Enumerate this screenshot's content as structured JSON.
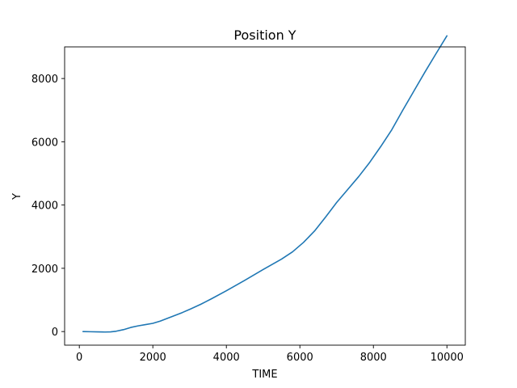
{
  "chart_data": {
    "type": "line",
    "title": "Position Y",
    "xlabel": "TIME",
    "ylabel": "Y",
    "xlim": [
      -400,
      10500
    ],
    "ylim": [
      -430,
      9000
    ],
    "xticks": [
      0,
      2000,
      4000,
      6000,
      8000,
      10000
    ],
    "yticks": [
      0,
      2000,
      4000,
      6000,
      8000
    ],
    "grid": false,
    "series": [
      {
        "color": "#1f77b4",
        "x": [
          100,
          300,
          500,
          700,
          850,
          1000,
          1200,
          1400,
          1600,
          1800,
          2000,
          2200,
          2400,
          2600,
          2800,
          3000,
          3300,
          3600,
          4000,
          4500,
          5000,
          5500,
          5800,
          6100,
          6400,
          6700,
          7000,
          7300,
          7600,
          7900,
          8200,
          8500,
          8800,
          9100,
          9400,
          9700,
          10000
        ],
        "y": [
          0,
          -5,
          -10,
          -15,
          -10,
          10,
          60,
          130,
          180,
          220,
          260,
          330,
          420,
          510,
          600,
          700,
          860,
          1040,
          1290,
          1620,
          1960,
          2290,
          2520,
          2820,
          3180,
          3620,
          4080,
          4490,
          4900,
          5350,
          5850,
          6380,
          7000,
          7600,
          8200,
          8780,
          9350
        ]
      }
    ]
  }
}
